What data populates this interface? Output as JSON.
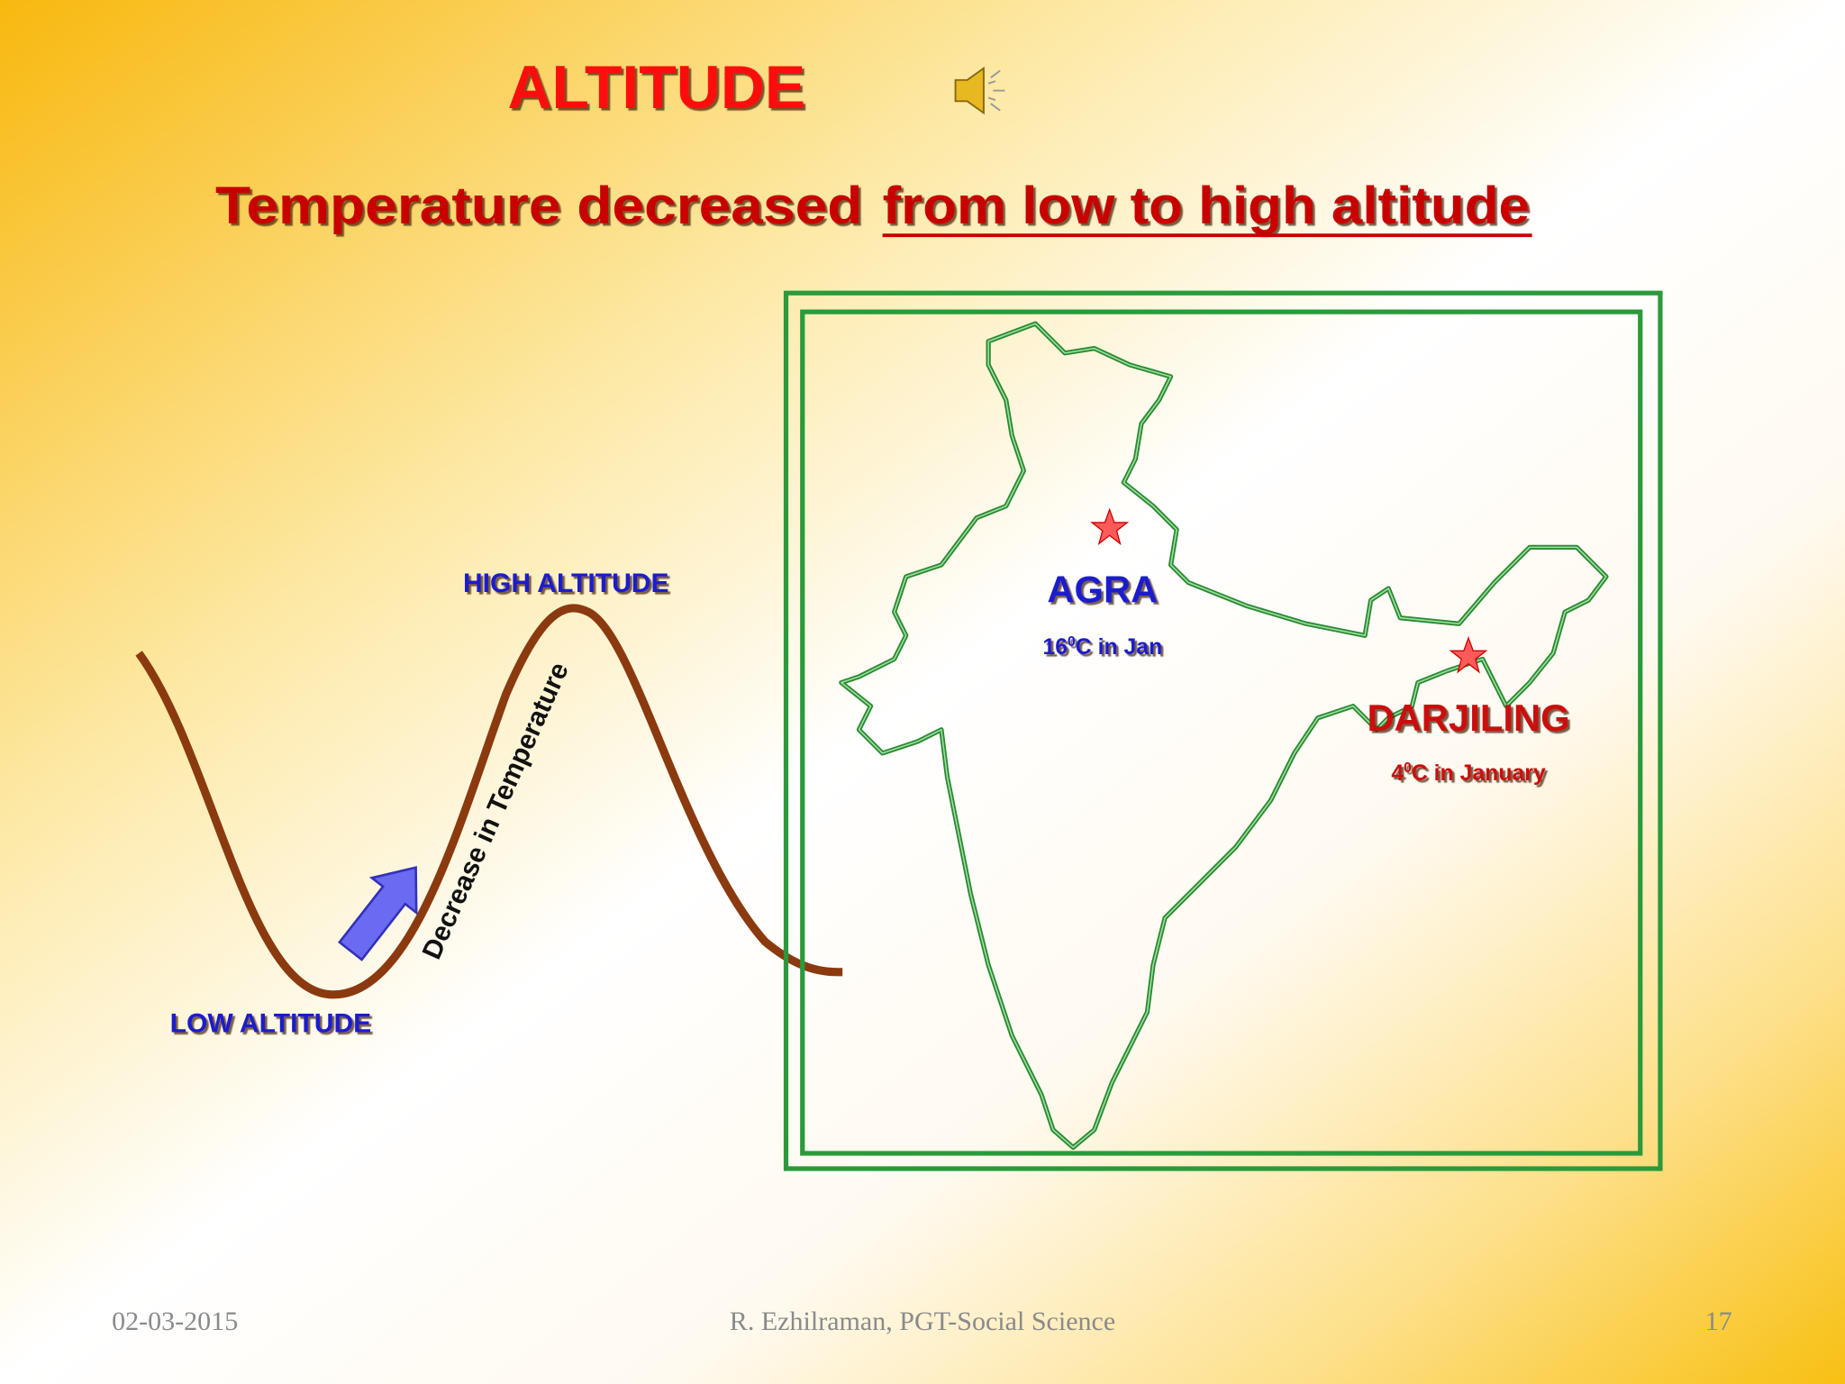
{
  "title": "ALTITUDE",
  "subtitle": {
    "plain": "Temperature decreased",
    "underlined": "from low to high altitude"
  },
  "diagram": {
    "high_label": "HIGH ALTITUDE",
    "low_label": "LOW ALTITUDE",
    "arrow_label": "Decrease in Temperature"
  },
  "map": {
    "places": [
      {
        "name": "AGRA",
        "temp": "16",
        "sup": "0",
        "note": "C in Jan"
      },
      {
        "name": "DARJILING",
        "temp": "4",
        "sup": "0",
        "note": "C in January"
      }
    ]
  },
  "footer": {
    "date": "02-03-2015",
    "author": "R. Ezhilraman, PGT-Social Science",
    "page": "17"
  }
}
